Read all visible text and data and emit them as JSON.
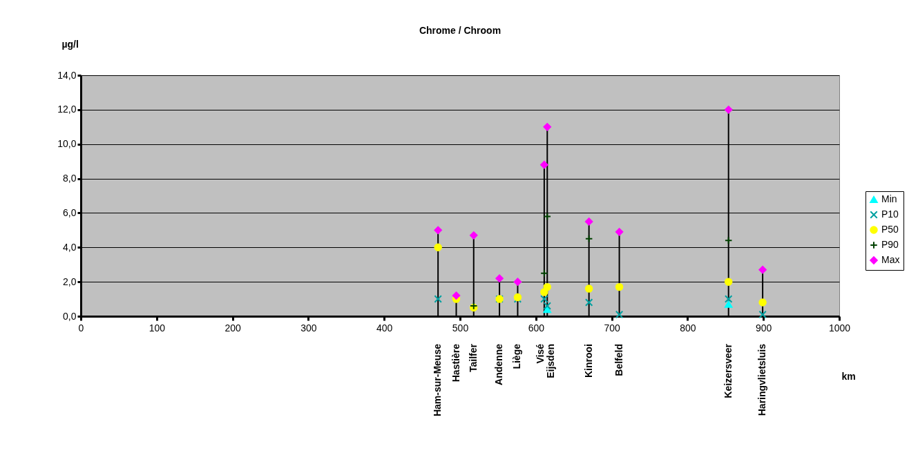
{
  "chart_data": {
    "type": "scatter",
    "title": "Chrome / Chroom",
    "xlabel": "km",
    "ylabel": "µg/l",
    "x": [
      471,
      495,
      518,
      552,
      576,
      611,
      615,
      670,
      710,
      854,
      899
    ],
    "series": [
      {
        "name": "Min",
        "color": "#00ffff",
        "marker": "triangle",
        "values": [
          null,
          null,
          null,
          null,
          null,
          null,
          0.4,
          null,
          null,
          0.7,
          null
        ]
      },
      {
        "name": "P10",
        "color": "#00a0a0",
        "marker": "cross",
        "values": [
          1.0,
          null,
          null,
          1.0,
          1.0,
          1.0,
          0.6,
          0.8,
          0.1,
          1.0,
          0.1
        ]
      },
      {
        "name": "P50",
        "color": "#ffff00",
        "marker": "circle",
        "values": [
          4.0,
          1.0,
          0.5,
          1.0,
          1.1,
          1.4,
          1.7,
          1.6,
          1.7,
          2.0,
          0.8
        ]
      },
      {
        "name": "P90",
        "color": "#004000",
        "marker": "plus",
        "values": [
          null,
          null,
          0.6,
          null,
          null,
          2.5,
          5.8,
          4.5,
          null,
          4.4,
          null
        ]
      },
      {
        "name": "Max",
        "type": "lollipop",
        "color": "#ff00ff",
        "marker": "diamond",
        "values": [
          5.0,
          1.2,
          4.7,
          2.2,
          2.0,
          8.8,
          11.0,
          5.5,
          4.9,
          12.0,
          2.7
        ]
      }
    ],
    "annotations": [
      "Ham-sur-Meuse",
      "Hastière",
      "Tailfer",
      "Andenne",
      "Liège",
      "Visé",
      "Eijsden",
      "Kinrooi",
      "Belfeld",
      "Keizersveer",
      "Haringvlietsluis"
    ],
    "xlim": [
      0,
      1000
    ],
    "xticks": [
      0,
      100,
      200,
      300,
      400,
      500,
      600,
      700,
      800,
      900,
      1000
    ],
    "ylim": [
      0,
      14
    ],
    "yticks": [
      {
        "value": 0,
        "label": "0,0"
      },
      {
        "value": 2,
        "label": "2,0"
      },
      {
        "value": 4,
        "label": "4,0"
      },
      {
        "value": 6,
        "label": "6,0"
      },
      {
        "value": 8,
        "label": "8,0"
      },
      {
        "value": 10,
        "label": "10,0"
      },
      {
        "value": 12,
        "label": "12,0"
      },
      {
        "value": 14,
        "label": "14,0"
      }
    ],
    "grid": "y",
    "legend": "right"
  }
}
